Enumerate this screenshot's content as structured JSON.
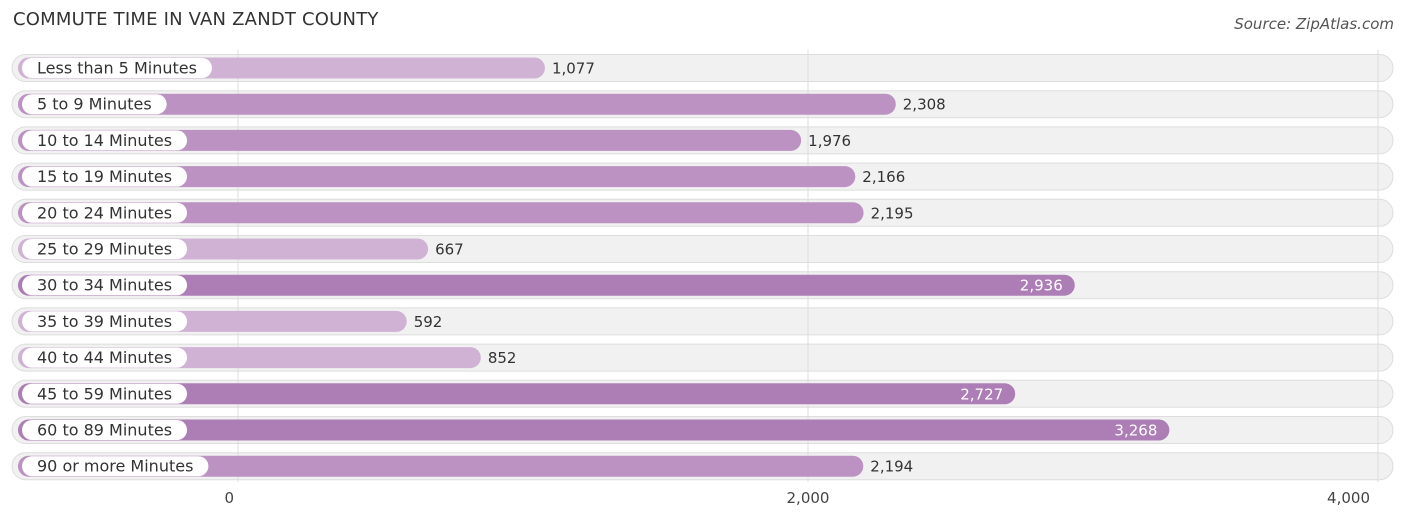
{
  "title": "COMMUTE TIME IN VAN ZANDT COUNTY",
  "source": "Source: ZipAtlas.com",
  "chart_data": {
    "type": "bar",
    "orientation": "horizontal",
    "title": "COMMUTE TIME IN VAN ZANDT COUNTY",
    "categories": [
      "Less than 5 Minutes",
      "5 to 9 Minutes",
      "10 to 14 Minutes",
      "15 to 19 Minutes",
      "20 to 24 Minutes",
      "25 to 29 Minutes",
      "30 to 34 Minutes",
      "35 to 39 Minutes",
      "40 to 44 Minutes",
      "45 to 59 Minutes",
      "60 to 89 Minutes",
      "90 or more Minutes"
    ],
    "values": [
      1077,
      2308,
      1976,
      2166,
      2195,
      667,
      2936,
      592,
      852,
      2727,
      3268,
      2194
    ],
    "value_labels": [
      "1,077",
      "2,308",
      "1,976",
      "2,166",
      "2,195",
      "667",
      "2,936",
      "592",
      "852",
      "2,727",
      "3,268",
      "2,194"
    ],
    "xlim": [
      0,
      4000
    ],
    "xticks": [
      0,
      2000,
      4000
    ],
    "xtick_labels": [
      "0",
      "2,000",
      "4,000"
    ],
    "xlabel": "",
    "ylabel": "",
    "grid": true,
    "legend": "none",
    "colors": {
      "bar_light": "#d0b2d4",
      "bar_dark": "#ad7db6",
      "track": "#f1f1f1",
      "track_border": "#dddddd",
      "grid": "#dddddd",
      "value_text_outside": "#333333",
      "value_text_inside": "#ffffff"
    }
  }
}
